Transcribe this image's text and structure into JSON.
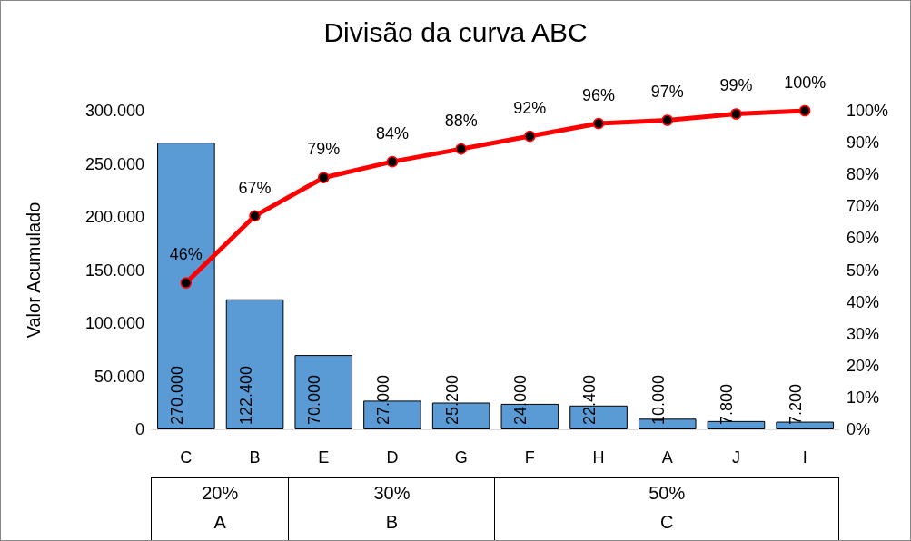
{
  "chart_data": {
    "type": "bar",
    "title": "Divisão da curva ABC",
    "ylabel": "Valor Acumulado",
    "categories": [
      "C",
      "B",
      "E",
      "D",
      "G",
      "F",
      "H",
      "A",
      "J",
      "I"
    ],
    "series": [
      {
        "color": "#5b9bd5",
        "values": [
          270000,
          122400,
          70000,
          27000,
          25200,
          24000,
          22400,
          10000,
          7800,
          7200
        ],
        "value_labels": [
          "270.000",
          "122.400",
          "70.000",
          "27.000",
          "25.200",
          "24.000",
          "22.400",
          "10.000",
          "7.800",
          "7.200"
        ]
      },
      {
        "type": "line",
        "axis": "y2",
        "color": "#ff0000",
        "values": [
          46,
          67,
          79,
          84,
          88,
          92,
          96,
          97,
          99,
          100
        ],
        "value_labels": [
          "46%",
          "67%",
          "79%",
          "84%",
          "88%",
          "92%",
          "96%",
          "97%",
          "99%",
          "100%"
        ]
      }
    ],
    "ylim": [
      0,
      300000
    ],
    "yticks": [
      0,
      {
        "value": 50000,
        "label": "50.000"
      },
      {
        "value": 100000,
        "label": "100.000"
      },
      {
        "value": 150000,
        "label": "150.000"
      },
      {
        "value": 200000,
        "label": "200.000"
      },
      {
        "value": 250000,
        "label": "250.000"
      },
      {
        "value": 300000,
        "label": "300.000"
      }
    ],
    "y2lim": [
      0,
      100
    ],
    "y2ticks": [
      {
        "value": 0,
        "label": "0%"
      },
      {
        "value": 10,
        "label": "10%"
      },
      {
        "value": 20,
        "label": "20%"
      },
      {
        "value": 30,
        "label": "30%"
      },
      {
        "value": 40,
        "label": "40%"
      },
      {
        "value": 50,
        "label": "50%"
      },
      {
        "value": 60,
        "label": "60%"
      },
      {
        "value": 70,
        "label": "70%"
      },
      {
        "value": 80,
        "label": "80%"
      },
      {
        "value": 90,
        "label": "90%"
      },
      {
        "value": 100,
        "label": "100%"
      }
    ],
    "marker": "circle",
    "grid": false,
    "annotations": [
      "20%",
      "A",
      "30%",
      "B",
      "50%",
      "C"
    ]
  }
}
